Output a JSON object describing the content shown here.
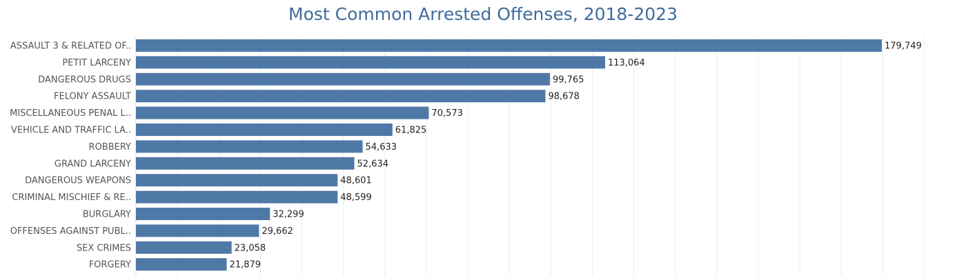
{
  "chart_data": {
    "type": "bar",
    "orientation": "horizontal",
    "title": "Most Common Arrested Offenses, 2018-2023",
    "xlabel": "",
    "ylabel": "",
    "categories": [
      "ASSAULT 3 & RELATED OF..",
      "PETIT LARCENY",
      "DANGEROUS DRUGS",
      "FELONY ASSAULT",
      "MISCELLANEOUS PENAL L..",
      "VEHICLE AND TRAFFIC LA..",
      "ROBBERY",
      "GRAND LARCENY",
      "DANGEROUS WEAPONS",
      "CRIMINAL MISCHIEF & RE..",
      "BURGLARY",
      "OFFENSES AGAINST PUBL..",
      "SEX CRIMES",
      "FORGERY"
    ],
    "values": [
      179749,
      113064,
      99765,
      98678,
      70573,
      61825,
      54633,
      52634,
      48601,
      48599,
      32299,
      29662,
      23058,
      21879
    ],
    "value_labels": [
      "179,749",
      "113,064",
      "99,765",
      "98,678",
      "70,573",
      "61,825",
      "54,633",
      "52,634",
      "48,601",
      "48,599",
      "32,299",
      "29,662",
      "23,058",
      "21,879"
    ],
    "xlim": [
      0,
      200000
    ],
    "grid": true,
    "bar_color": "#4e79a7"
  }
}
